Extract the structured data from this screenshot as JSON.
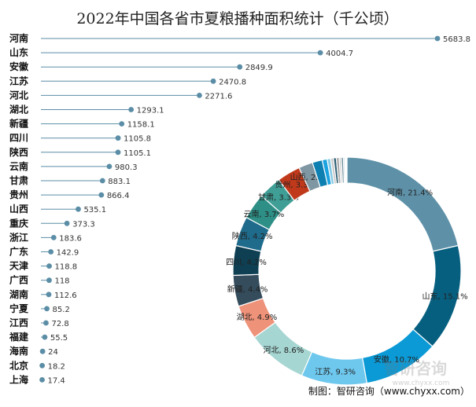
{
  "chart_data": [
    {
      "type": "lollipop",
      "title": "2022年中国各省市夏粮播种面积统计（千公顷）",
      "categories": [
        "河南",
        "山东",
        "安徽",
        "江苏",
        "河北",
        "湖北",
        "新疆",
        "四川",
        "陕西",
        "云南",
        "甘肃",
        "贵州",
        "山西",
        "重庆",
        "浙江",
        "广东",
        "天津",
        "广西",
        "湖南",
        "宁夏",
        "江西",
        "福建",
        "海南",
        "北京",
        "上海"
      ],
      "values": [
        5683.8,
        4004.7,
        2849.9,
        2470.8,
        2271.6,
        1293.1,
        1158.1,
        1105.8,
        1105.1,
        980.3,
        883.1,
        866.4,
        535.1,
        373.3,
        183.6,
        142.9,
        118.8,
        118,
        112.6,
        85.2,
        72.8,
        55.5,
        24,
        18.2,
        17.4
      ],
      "value_labels": [
        "5683.8",
        "4004.7",
        "2849.9",
        "2470.8",
        "2271.6",
        "1293.1",
        "1158.1",
        "1105.8",
        "1105.1",
        "980.3",
        "883.1",
        "866.4",
        "535.1",
        "373.3",
        "183.6",
        "142.9",
        "118.8",
        "118",
        "112.6",
        "85.2",
        "72.8",
        "55.5",
        "24",
        "18.2",
        "17.4"
      ],
      "color": "#5b8ea6",
      "xlim": [
        0,
        5683.8
      ]
    },
    {
      "type": "pie",
      "subtype": "donut",
      "slices": [
        {
          "name": "河南",
          "share": 21.4,
          "label": "河南, 21.4%",
          "color": "#5e91a8"
        },
        {
          "name": "山东",
          "share": 15.1,
          "label": "山东, 15.1%",
          "color": "#075f7f"
        },
        {
          "name": "安徽",
          "share": 10.7,
          "label": "安徽, 10.7%",
          "color": "#0b9ad6"
        },
        {
          "name": "江苏",
          "share": 9.3,
          "label": "江苏, 9.3%",
          "color": "#6ec8ee"
        },
        {
          "name": "河北",
          "share": 8.6,
          "label": "河北, 8.6%",
          "color": "#a6d6d2"
        },
        {
          "name": "湖北",
          "share": 4.9,
          "label": "湖北, 4.9%",
          "color": "#ee9279"
        },
        {
          "name": "新疆",
          "share": 4.4,
          "label": "新疆, 4.4%",
          "color": "#344c5c"
        },
        {
          "name": "四川",
          "share": 4.2,
          "label": "四川, 4.2%",
          "color": "#0f3f52"
        },
        {
          "name": "陕西",
          "share": 4.2,
          "label": "陕西, 4.2%",
          "color": "#1f6b8c"
        },
        {
          "name": "云南",
          "share": 3.7,
          "label": "云南, 3.7%",
          "color": "#2e8f86"
        },
        {
          "name": "甘肃",
          "share": 3.3,
          "label": "甘肃, 3.3%",
          "color": "#3f9f96"
        },
        {
          "name": "贵州",
          "share": 3.3,
          "label": "贵州, 3.3%",
          "color": "#c0391b"
        },
        {
          "name": "山西",
          "share": 2.0,
          "label": "山西, 2.0%",
          "color": "#7f97a3"
        },
        {
          "name": "重庆",
          "share": 1.4,
          "label": "",
          "color": "#0d7fb0"
        },
        {
          "name": "浙江",
          "share": 0.7,
          "label": "",
          "color": "#1aa3e0"
        },
        {
          "name": "广东",
          "share": 0.5,
          "label": "",
          "color": "#86cbe6"
        },
        {
          "name": "天津",
          "share": 0.4,
          "label": "",
          "color": "#c9c9c9"
        },
        {
          "name": "广西",
          "share": 0.4,
          "label": "",
          "color": "#2c5d72"
        },
        {
          "name": "湖南",
          "share": 0.4,
          "label": "",
          "color": "#aaaaaa"
        },
        {
          "name": "宁夏",
          "share": 0.3,
          "label": "",
          "color": "#d0d0d0"
        },
        {
          "name": "江西",
          "share": 0.3,
          "label": "",
          "color": "#6a8e9e"
        },
        {
          "name": "福建",
          "share": 0.2,
          "label": "",
          "color": "#b8c8d0"
        },
        {
          "name": "海南",
          "share": 0.1,
          "label": "",
          "color": "#dddddd"
        },
        {
          "name": "北京",
          "share": 0.1,
          "label": "",
          "color": "#999999"
        },
        {
          "name": "上海",
          "share": 0.1,
          "label": "",
          "color": "#cccccc"
        }
      ]
    }
  ],
  "watermark": {
    "brand": "智研咨询",
    "url": "www.chyxx.com"
  },
  "source_note": "制图：智研咨询（www.chyxx.com）"
}
